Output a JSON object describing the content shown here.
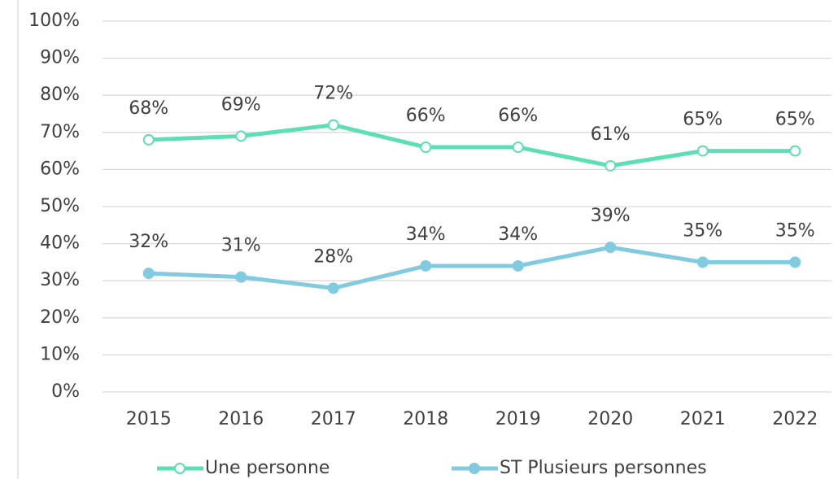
{
  "chart_data": {
    "type": "line",
    "categories": [
      "2015",
      "2016",
      "2017",
      "2018",
      "2019",
      "2020",
      "2021",
      "2022"
    ],
    "series": [
      {
        "name": "Une personne",
        "color": "#5ddfb5",
        "marker": "hollow",
        "values": [
          68,
          69,
          72,
          66,
          66,
          61,
          65,
          65
        ],
        "value_labels": [
          "68%",
          "69%",
          "72%",
          "66%",
          "66%",
          "61%",
          "65%",
          "65%"
        ]
      },
      {
        "name": "ST Plusieurs personnes",
        "color": "#80cbe0",
        "marker": "filled",
        "values": [
          32,
          31,
          28,
          34,
          34,
          39,
          35,
          35
        ],
        "value_labels": [
          "32%",
          "31%",
          "28%",
          "34%",
          "34%",
          "39%",
          "35%",
          "35%"
        ]
      }
    ],
    "ylim": [
      0,
      100
    ],
    "yticks": [
      {
        "value": 0,
        "label": "0%"
      },
      {
        "value": 10,
        "label": "10%"
      },
      {
        "value": 20,
        "label": "20%"
      },
      {
        "value": 30,
        "label": "30%"
      },
      {
        "value": 40,
        "label": "40%"
      },
      {
        "value": 50,
        "label": "50%"
      },
      {
        "value": 60,
        "label": "60%"
      },
      {
        "value": 70,
        "label": "70%"
      },
      {
        "value": 80,
        "label": "80%"
      },
      {
        "value": 90,
        "label": "90%"
      },
      {
        "value": 100,
        "label": "100%"
      }
    ],
    "grid": true,
    "legend": "bottom"
  }
}
